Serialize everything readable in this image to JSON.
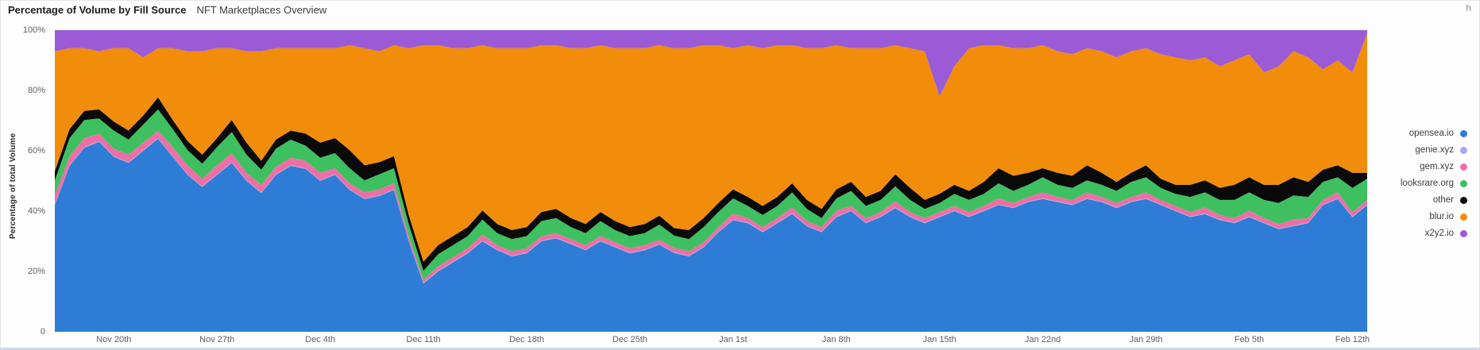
{
  "header": {
    "title": "Percentage of Volume by Fill Source",
    "subtitle": "NFT Marketplaces Overview",
    "corner_text": "h"
  },
  "y_axis": {
    "label": "Percentage of total Volume",
    "ticks": [
      "100%",
      "80%",
      "60%",
      "40%",
      "20%",
      "0"
    ]
  },
  "legend": {
    "position": "right",
    "items": [
      {
        "label": "opensea.io",
        "color": "#2e7cd6"
      },
      {
        "label": "genie.xyz",
        "color": "#a6a9ee"
      },
      {
        "label": "gem.xyz",
        "color": "#ee6fa5"
      },
      {
        "label": "looksrare.org",
        "color": "#3ec061"
      },
      {
        "label": "other",
        "color": "#0a0a0a"
      },
      {
        "label": "blur.io",
        "color": "#f18d0b"
      },
      {
        "label": "x2y2.io",
        "color": "#9b5bd6"
      }
    ]
  },
  "chart_data": {
    "type": "area",
    "stacked": true,
    "normalized_percent": true,
    "title": "Percentage of Volume by Fill Source",
    "subtitle": "NFT Marketplaces Overview",
    "xlabel": "",
    "ylabel": "Percentage of total Volume",
    "ylim": [
      0,
      100
    ],
    "grid": false,
    "legend_position": "right",
    "x": [
      "Nov 16",
      "Nov 17",
      "Nov 18",
      "Nov 19",
      "Nov 20",
      "Nov 21",
      "Nov 22",
      "Nov 23",
      "Nov 24",
      "Nov 25",
      "Nov 26",
      "Nov 27",
      "Nov 28",
      "Nov 29",
      "Nov 30",
      "Dec 1",
      "Dec 2",
      "Dec 3",
      "Dec 4",
      "Dec 5",
      "Dec 6",
      "Dec 7",
      "Dec 8",
      "Dec 9",
      "Dec 10",
      "Dec 11",
      "Dec 12",
      "Dec 13",
      "Dec 14",
      "Dec 15",
      "Dec 16",
      "Dec 17",
      "Dec 18",
      "Dec 19",
      "Dec 20",
      "Dec 21",
      "Dec 22",
      "Dec 23",
      "Dec 24",
      "Dec 25",
      "Dec 26",
      "Dec 27",
      "Dec 28",
      "Dec 29",
      "Dec 30",
      "Dec 31",
      "Jan 1",
      "Jan 2",
      "Jan 3",
      "Jan 4",
      "Jan 5",
      "Jan 6",
      "Jan 7",
      "Jan 8",
      "Jan 9",
      "Jan 10",
      "Jan 11",
      "Jan 12",
      "Jan 13",
      "Jan 14",
      "Jan 15",
      "Jan 16",
      "Jan 17",
      "Jan 18",
      "Jan 19",
      "Jan 20",
      "Jan 21",
      "Jan 22",
      "Jan 23",
      "Jan 24",
      "Jan 25",
      "Jan 26",
      "Jan 27",
      "Jan 28",
      "Jan 29",
      "Jan 30",
      "Jan 31",
      "Feb 1",
      "Feb 2",
      "Feb 3",
      "Feb 4",
      "Feb 5",
      "Feb 6",
      "Feb 7",
      "Feb 8",
      "Feb 9",
      "Feb 10",
      "Feb 11",
      "Feb 12",
      "Feb 13"
    ],
    "x_tick_labels": [
      "Nov 20th",
      "Nov 27th",
      "Dec 4th",
      "Dec 11th",
      "Dec 18th",
      "Dec 25th",
      "Jan 1st",
      "Jan 8th",
      "Jan 15th",
      "Jan 22nd",
      "Jan 29th",
      "Feb 5th",
      "Feb 12th"
    ],
    "x_tick_indices": [
      4,
      11,
      18,
      25,
      32,
      39,
      46,
      53,
      60,
      67,
      74,
      81,
      88
    ],
    "series": [
      {
        "name": "opensea.io",
        "color": "#2e7cd6",
        "values": [
          42,
          55,
          61,
          63,
          58,
          56,
          60,
          64,
          58,
          52,
          48,
          52,
          56,
          50,
          46,
          52,
          55,
          54,
          50,
          52,
          47,
          44,
          45,
          47,
          30,
          16,
          20,
          23,
          26,
          30,
          27,
          25,
          26,
          30,
          31,
          29,
          27,
          30,
          28,
          26,
          27,
          29,
          26,
          25,
          28,
          33,
          37,
          36,
          33,
          36,
          39,
          35,
          33,
          38,
          40,
          36,
          38,
          41,
          38,
          36,
          38,
          40,
          38,
          40,
          42,
          41,
          43,
          44,
          43,
          42,
          44,
          43,
          41,
          43,
          44,
          42,
          40,
          38,
          39,
          37,
          36,
          38,
          36,
          34,
          35,
          36,
          42,
          44,
          38,
          42
        ]
      },
      {
        "name": "genie.xyz",
        "color": "#a6a9ee",
        "values": [
          0.2,
          0.2,
          0.2,
          0.2,
          0.2,
          0.2,
          0.2,
          0.2,
          0.2,
          0.2,
          0.2,
          0.2,
          0.2,
          0.2,
          0.2,
          0.2,
          0.2,
          0.2,
          0.2,
          0.2,
          0.2,
          0.2,
          0.2,
          0.2,
          0.2,
          0.2,
          0.2,
          0.2,
          0.2,
          0.2,
          0.2,
          0.2,
          0.2,
          0.2,
          0.2,
          0.2,
          0.2,
          0.2,
          0.2,
          0.2,
          0.2,
          0.2,
          0.2,
          0.2,
          0.2,
          0.2,
          0.2,
          0.2,
          0.2,
          0.2,
          0.2,
          0.2,
          0.2,
          0.2,
          0.2,
          0.2,
          0.2,
          0.2,
          0.2,
          0.2,
          0.2,
          0.2,
          0.2,
          0.2,
          0.2,
          0.2,
          0.2,
          0.2,
          0.2,
          0.2,
          0.2,
          0.2,
          0.2,
          0.2,
          0.2,
          0.2,
          0.2,
          0.2,
          0.2,
          0.2,
          0.2,
          0.2,
          0.2,
          0.2,
          0.2,
          0.2,
          0.2,
          0.2,
          0.2,
          0.2
        ]
      },
      {
        "name": "gem.xyz",
        "color": "#ee6fa5",
        "values": [
          3,
          3,
          3,
          2.5,
          2.5,
          2.5,
          2.5,
          2.5,
          3,
          3,
          2.5,
          3,
          3,
          2.5,
          2.5,
          2.5,
          2.5,
          2.5,
          2.5,
          2,
          2,
          2,
          2,
          2,
          1.5,
          1,
          1.5,
          1.5,
          1.5,
          2,
          1.5,
          1.5,
          1.5,
          1.5,
          1.5,
          1.5,
          1.5,
          1.5,
          1.5,
          1.5,
          1.5,
          1.5,
          1.5,
          1.5,
          1.5,
          1.5,
          2,
          1.5,
          1.5,
          1.5,
          2,
          1.5,
          1.5,
          2,
          1.5,
          1.5,
          1.5,
          2,
          1.5,
          1.5,
          1.5,
          1.5,
          1.5,
          1.5,
          2,
          1.5,
          1.5,
          2,
          1.5,
          1.5,
          2,
          1.5,
          1.5,
          1.5,
          2,
          1.5,
          1.5,
          1.5,
          2,
          1.5,
          1.5,
          2,
          1.5,
          1.5,
          2,
          1.5,
          1.5,
          2,
          1.5,
          1.5
        ]
      },
      {
        "name": "looksrare.org",
        "color": "#3ec061",
        "values": [
          5,
          6,
          6,
          5,
          6,
          5,
          6,
          7,
          6,
          5,
          5,
          6,
          7,
          6,
          5,
          6,
          6,
          5,
          5,
          5,
          5,
          4,
          5,
          5,
          4,
          3,
          4,
          4,
          4,
          5,
          4,
          4,
          4,
          5,
          5,
          4,
          4,
          5,
          4,
          4,
          4,
          5,
          4,
          4,
          5,
          5,
          5,
          4,
          4,
          4,
          5,
          4,
          3,
          4,
          5,
          4,
          4,
          5,
          4,
          3,
          3,
          4,
          4,
          4,
          5,
          4,
          4,
          5,
          4,
          4,
          4,
          4,
          4,
          5,
          5,
          4,
          4,
          5,
          5,
          5,
          6,
          6,
          6,
          7,
          8,
          7,
          6,
          5,
          8,
          7
        ]
      },
      {
        "name": "other",
        "color": "#0a0a0a",
        "values": [
          3,
          3,
          3,
          3,
          3,
          3,
          3,
          4,
          3,
          3,
          3,
          3,
          4,
          4,
          3,
          3,
          3,
          4,
          5,
          5,
          6,
          5,
          4,
          4,
          3,
          3,
          3,
          3,
          3,
          3,
          3,
          3,
          3,
          3,
          3,
          3,
          3,
          3,
          3,
          3,
          3,
          3,
          2.5,
          3,
          3,
          3,
          3,
          3,
          3,
          3,
          3,
          3,
          3,
          3,
          3,
          3,
          3,
          4,
          4,
          3,
          3,
          3,
          3,
          4,
          5,
          5,
          4,
          3,
          4,
          4,
          5,
          4,
          3,
          3,
          4,
          3,
          3,
          4,
          4,
          4,
          5,
          5,
          5,
          6,
          6,
          5,
          4,
          4,
          5,
          2
        ]
      },
      {
        "name": "blur.io",
        "color": "#f18d0b",
        "values": [
          39.8,
          26.8,
          20.8,
          19.3,
          24.3,
          27.3,
          19.3,
          16.3,
          23.8,
          29.8,
          34.3,
          29.8,
          23.8,
          30.3,
          36.3,
          30.3,
          27.3,
          28.3,
          31.3,
          29.8,
          34.8,
          38.8,
          36.8,
          36.8,
          55.3,
          71.8,
          66.3,
          62.3,
          59.3,
          54.8,
          58.3,
          60.3,
          59.3,
          55.3,
          54.3,
          56.3,
          58.3,
          55.3,
          57.3,
          59.3,
          58.3,
          56.8,
          59.3,
          60.3,
          57.3,
          52.3,
          46.8,
          50.3,
          52.3,
          50.3,
          45.8,
          50.3,
          53.3,
          47.8,
          44.3,
          49.3,
          47.3,
          42.8,
          46.3,
          49.3,
          32.3,
          39.3,
          47.3,
          45.3,
          40.8,
          42.3,
          41.3,
          40.8,
          40.3,
          40.3,
          38.8,
          40.3,
          41.3,
          40.3,
          38.8,
          41.3,
          42.3,
          41.3,
          40.8,
          40.3,
          41.3,
          40.8,
          37.3,
          39.3,
          41.8,
          41.3,
          33.3,
          34.8,
          33.3,
          46.3
        ]
      },
      {
        "name": "x2y2.io",
        "color": "#9b5bd6",
        "values": [
          7,
          6,
          6,
          7,
          6,
          6,
          9,
          6,
          6,
          7,
          7,
          6,
          6,
          7,
          7,
          6,
          6,
          6,
          6,
          6,
          5,
          6,
          7,
          5,
          6,
          5,
          5,
          6,
          6,
          5,
          6,
          6,
          6,
          5,
          5,
          6,
          6,
          5,
          6,
          6,
          6,
          5,
          6,
          6,
          5,
          5,
          6,
          5,
          6,
          5,
          5,
          6,
          6,
          5,
          6,
          6,
          6,
          5,
          6,
          7,
          22,
          12,
          6,
          5,
          5,
          6,
          6,
          5,
          7,
          8,
          6,
          7,
          9,
          7,
          6,
          8,
          9,
          10,
          9,
          12,
          10,
          8,
          14,
          12,
          7,
          9,
          13,
          10,
          14,
          1
        ]
      }
    ]
  }
}
